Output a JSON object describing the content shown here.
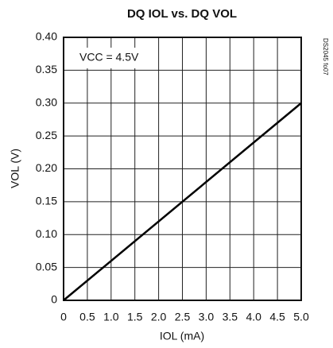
{
  "chart_data": {
    "type": "line",
    "title": "DQ IOL vs. DQ VOL",
    "x_label": "IOL (mA)",
    "y_label": "VOL (V)",
    "annotations": [
      "VCC = 4.5V",
      "DS2045 fo07"
    ],
    "x": [
      0,
      5.0
    ],
    "series": [
      {
        "name": "VOL",
        "color": "#000000",
        "values": [
          0,
          0.3
        ]
      }
    ],
    "xlim": [
      0,
      5.0
    ],
    "xticks": [
      0,
      0.5,
      {
        "value": 1,
        "label": "1.0"
      },
      1.5,
      {
        "value": 2,
        "label": "2.0"
      },
      2.5,
      {
        "value": 3,
        "label": "3.0"
      },
      3.5,
      {
        "value": 4,
        "label": "4.0"
      },
      4.5,
      {
        "value": 5,
        "label": "5.0"
      }
    ],
    "ylim": [
      0,
      0.4
    ],
    "yticks": [
      0,
      0.05,
      {
        "value": 0.1,
        "label": "0.10"
      },
      0.15,
      {
        "value": 0.2,
        "label": "0.20"
      },
      0.25,
      {
        "value": 0.3,
        "label": "0.30"
      },
      0.35,
      {
        "value": 0.4,
        "label": "0.40"
      }
    ],
    "grid": true
  }
}
